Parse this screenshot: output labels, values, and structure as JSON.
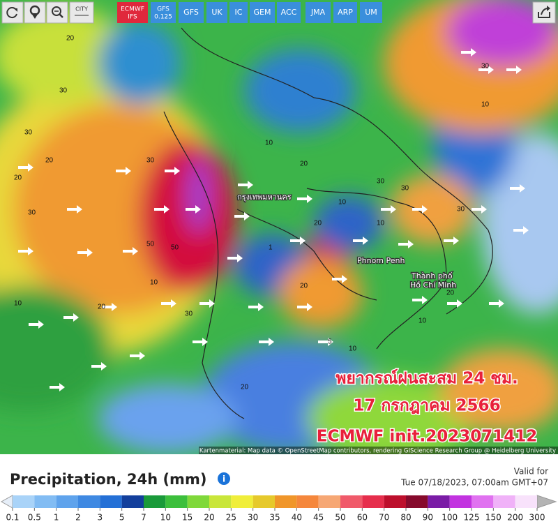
{
  "toolbar": {
    "city": "CITY",
    "models": [
      [
        "ECMWF",
        "IFS"
      ],
      [
        "GFS",
        "0.125"
      ],
      [
        "GFS"
      ],
      [
        "UK"
      ],
      [
        "IC"
      ],
      [
        "GEM"
      ],
      [
        "ACC"
      ],
      [
        "JMA"
      ],
      [
        "ARP"
      ],
      [
        "UM"
      ]
    ],
    "active": 0
  },
  "map": {
    "places": [
      "กรุงเทพมหานคร",
      "Phnom Penh",
      "Thành phố",
      "Hồ Chí Minh"
    ],
    "contour_labels": [
      "20",
      "30",
      "30",
      "20",
      "30",
      "50",
      "50",
      "30",
      "20",
      "10",
      "10",
      "20",
      "30",
      "10",
      "20",
      "30",
      "20",
      "10",
      "10",
      "30",
      "30",
      "20",
      "10",
      "5",
      "10",
      "20",
      "1",
      "10",
      "30",
      "20"
    ],
    "overlay": [
      "พยากรณ์ฝนสะสม 24 ชม.",
      "17 กรกฎาคม 2566",
      "ECMWF init.2023071412"
    ],
    "attribution": "Kartenmaterial: Map data © OpenStreetMap contributors, rendering GIScience Research Group @ Heidelberg University"
  },
  "panel": {
    "title": "Precipitation, 24h (mm)",
    "valid_label": "Valid for",
    "valid_time": "Tue 07/18/2023, 07:00am GMT+07"
  },
  "legend": {
    "labels": [
      0.1,
      0.5,
      1,
      2,
      3,
      5,
      7,
      10,
      15,
      20,
      25,
      30,
      35,
      40,
      45,
      50,
      60,
      70,
      80,
      90,
      100,
      125,
      150,
      200,
      300
    ],
    "colors": [
      "#a9d3f8",
      "#82bcf3",
      "#5fa3ec",
      "#3f89e2",
      "#2470d6",
      "#133f9c",
      "#1a9a3a",
      "#3cbf3c",
      "#7fd83a",
      "#c9e63a",
      "#f0ee3a",
      "#e6c92c",
      "#f0962a",
      "#f5873c",
      "#f6a774",
      "#f05a6a",
      "#e62e4c",
      "#bd0f2c",
      "#860a2c",
      "#7a1ca6",
      "#c233e0",
      "#e072f0",
      "#f0b2f8",
      "#f8e2fb"
    ],
    "low_color": "#e6eef8",
    "high_color": "#b4b4b4"
  }
}
